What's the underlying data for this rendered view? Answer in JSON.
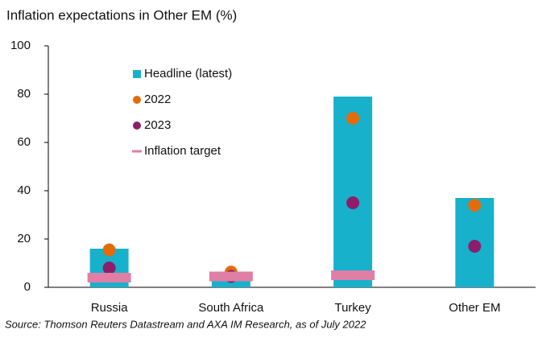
{
  "chart_data": {
    "type": "bar",
    "title": "Inflation expectations in Other EM (%)",
    "source": "Source: Thomson Reuters Datastream and AXA IM Research, as of July  2022",
    "categories": [
      "Russia",
      "South Africa",
      "Turkey",
      "Other EM"
    ],
    "series": [
      {
        "name": "Headline (latest)",
        "color": "#17b1cc",
        "marker": "bar",
        "values": [
          16,
          6,
          79,
          37
        ]
      },
      {
        "name": "2022",
        "color": "#e36c0a",
        "marker": "dot",
        "values": [
          15.5,
          6.3,
          70,
          34
        ]
      },
      {
        "name": "2023",
        "color": "#8e1d6b",
        "marker": "dot",
        "values": [
          8,
          4.5,
          35,
          17
        ]
      },
      {
        "name": "Inflation target",
        "color": "#e07ea6",
        "marker": "dash",
        "values": [
          4,
          4.5,
          5,
          null
        ]
      }
    ],
    "ylim": [
      0,
      100
    ],
    "yticks": [
      0,
      20,
      40,
      60,
      80,
      100
    ],
    "legend": "upper left"
  }
}
